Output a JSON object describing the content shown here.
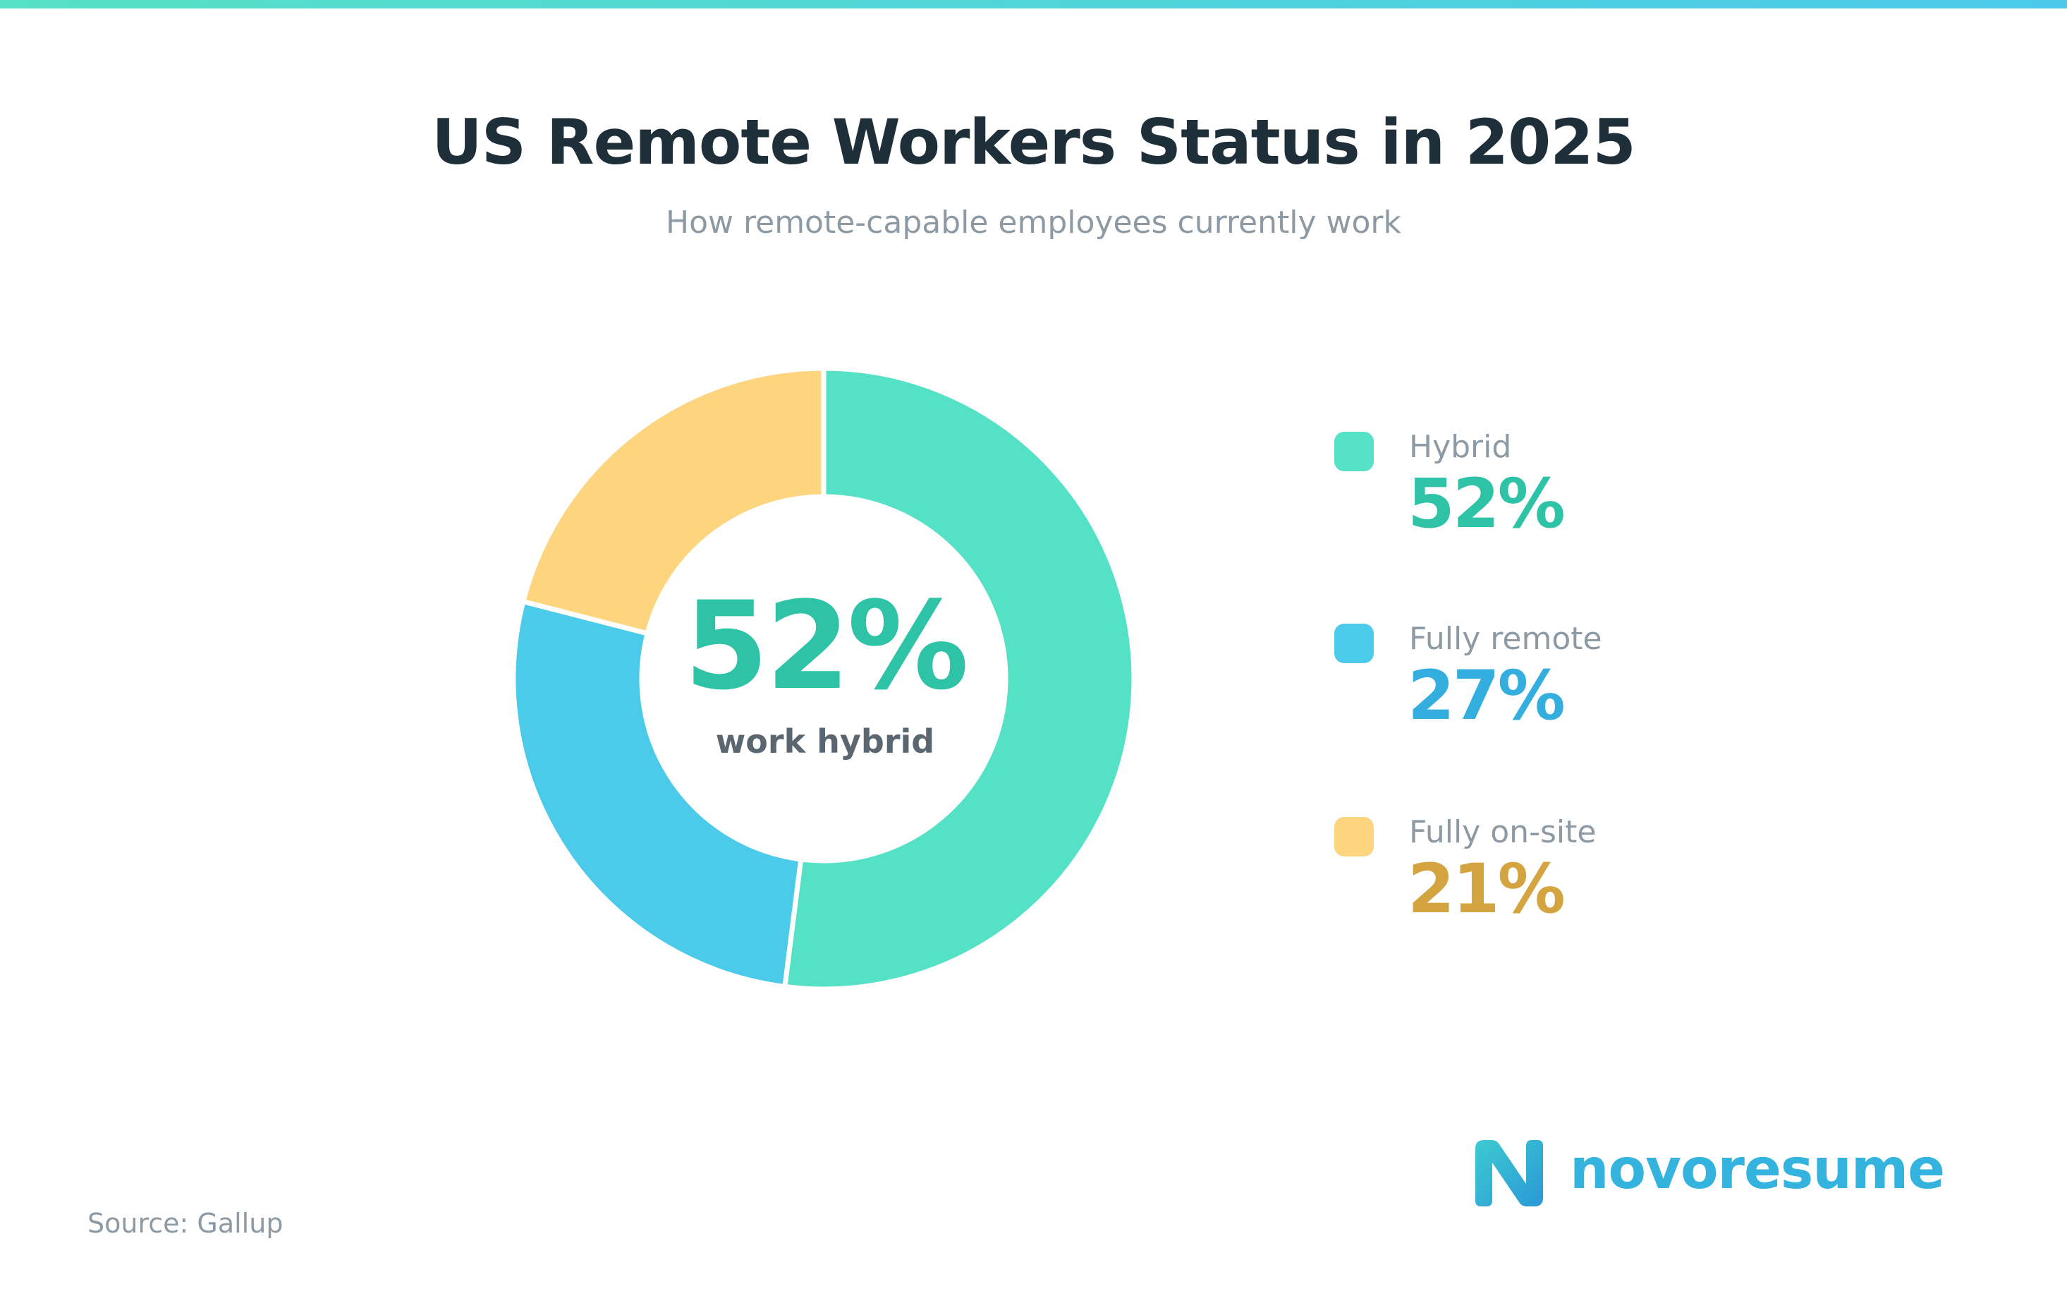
{
  "title": "US Remote Workers Status in 2025",
  "subtitle": "How remote-capable employees currently work",
  "center": {
    "value": "52%",
    "caption": "work hybrid"
  },
  "legend": [
    {
      "label": "Hybrid",
      "value": "52%",
      "swatch_color": "#55e1c6",
      "value_color": "#2ec2a6"
    },
    {
      "label": "Fully remote",
      "value": "27%",
      "swatch_color": "#4ccaea",
      "value_color": "#34aede"
    },
    {
      "label": "Fully on-site",
      "value": "21%",
      "swatch_color": "#fdd57f",
      "value_color": "#d3a43f"
    }
  ],
  "source": "Source: Gallup",
  "logo": {
    "text": "novoresume",
    "icon": "novoresume-logo-icon"
  },
  "colors": {
    "accent_gradient": [
      "#55e1c6",
      "#4cc9ea"
    ],
    "title": "#1e2f3a",
    "muted": "#8d9aa4"
  },
  "chart_data": {
    "type": "pie",
    "variant": "donut",
    "title": "US Remote Workers Status in 2025",
    "subtitle": "How remote-capable employees currently work",
    "categories": [
      "Hybrid",
      "Fully remote",
      "Fully on-site"
    ],
    "values": [
      52,
      27,
      21
    ],
    "colors": [
      "#55e1c6",
      "#4ccaea",
      "#fdd57f"
    ],
    "start": "top",
    "direction": "clockwise",
    "legend_placement": "right"
  }
}
